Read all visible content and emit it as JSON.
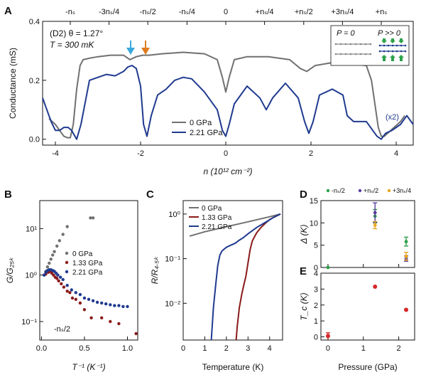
{
  "colors": {
    "gray": "#707070",
    "blue": "#1f3a8f",
    "red": "#8b1a1a",
    "green": "#2ca24a",
    "purple": "#5b3fa0",
    "orange": "#e9a821",
    "cyan": "#3aa8dc",
    "arrow_orange": "#e07b1e"
  },
  "chart_data": [
    {
      "panel": "A",
      "type": "line",
      "title_line1": "(D2)  θ = 1.27°",
      "title_line2": "T = 300 mK",
      "xlabel": "n (10¹² cm⁻²)",
      "ylabel": "Conductance (mS)",
      "xlim": [
        -4.3,
        4.4
      ],
      "ylim": [
        -0.02,
        0.4
      ],
      "xticks": [
        "-4",
        "-2",
        "0",
        "2",
        "4"
      ],
      "yticks": [
        "0.0",
        "0.2",
        "0.4"
      ],
      "top_ticks": [
        {
          "x": -3.65,
          "label": "-nₛ"
        },
        {
          "x": -2.74,
          "label": "-3nₛ/4"
        },
        {
          "x": -1.83,
          "label": "-nₛ/2"
        },
        {
          "x": -0.91,
          "label": "-nₛ/4"
        },
        {
          "x": 0,
          "label": "0"
        },
        {
          "x": 0.91,
          "label": "+nₛ/4"
        },
        {
          "x": 1.83,
          "label": "+nₛ/2"
        },
        {
          "x": 2.74,
          "label": "+3nₛ/4"
        },
        {
          "x": 3.65,
          "label": "+nₛ"
        }
      ],
      "inset": {
        "left": "P = 0",
        "right": "P >> 0"
      },
      "annotation": "(x2)",
      "series": [
        {
          "name": "0 GPa",
          "color": "gray",
          "x": [
            -4.15,
            -4.0,
            -3.9,
            -3.8,
            -3.72,
            -3.65,
            -3.58,
            -3.5,
            -3.42,
            -3.35,
            -3.2,
            -3.0,
            -2.7,
            -2.4,
            -2.25,
            -2.1,
            -1.95,
            -1.8,
            -1.5,
            -1.0,
            -0.5,
            -0.2,
            -0.08,
            0,
            0.08,
            0.2,
            0.5,
            1.0,
            1.5,
            1.75,
            1.9,
            2.1,
            2.5,
            3.0,
            3.3,
            3.42,
            3.5,
            3.58,
            3.65,
            3.72,
            3.8,
            3.95,
            4.1,
            4.2
          ],
          "y": [
            0.07,
            0.05,
            0.03,
            0.01,
            0.005,
            0.005,
            0.05,
            0.17,
            0.25,
            0.27,
            0.275,
            0.28,
            0.285,
            0.285,
            0.27,
            0.28,
            0.285,
            0.285,
            0.29,
            0.295,
            0.29,
            0.27,
            0.21,
            0.16,
            0.21,
            0.27,
            0.28,
            0.28,
            0.27,
            0.24,
            0.23,
            0.25,
            0.26,
            0.255,
            0.25,
            0.2,
            0.12,
            0.04,
            0.01,
            0.01,
            0.02,
            0.04,
            0.06,
            0.08
          ]
        },
        {
          "name": "2.21 GPa",
          "color": "blue",
          "x": [
            -4.3,
            -4.2,
            -4.1,
            -4.0,
            -3.9,
            -3.8,
            -3.7,
            -3.62,
            -3.5,
            -3.4,
            -3.2,
            -3.0,
            -2.8,
            -2.6,
            -2.4,
            -2.3,
            -2.2,
            -2.1,
            -2.0,
            -1.93,
            -1.85,
            -1.75,
            -1.6,
            -1.4,
            -1.2,
            -1.0,
            -0.8,
            -0.5,
            -0.2,
            -0.08,
            0,
            0.08,
            0.2,
            0.5,
            0.8,
            0.95,
            1.1,
            1.4,
            1.7,
            1.85,
            1.95,
            2.05,
            2.2,
            2.5,
            2.75,
            2.85,
            3.0,
            3.3,
            3.45,
            3.55,
            3.65,
            3.75,
            3.9,
            4.1,
            4.25,
            4.4
          ],
          "y": [
            0.14,
            0.1,
            0.06,
            0.03,
            0.03,
            0.04,
            0.04,
            0.03,
            0.0,
            0.05,
            0.2,
            0.21,
            0.22,
            0.215,
            0.23,
            0.245,
            0.25,
            0.24,
            0.18,
            0.05,
            0.01,
            0.08,
            0.15,
            0.17,
            0.2,
            0.21,
            0.205,
            0.16,
            0.1,
            0.03,
            0.01,
            0.05,
            0.12,
            0.18,
            0.14,
            0.1,
            0.14,
            0.19,
            0.14,
            0.06,
            0.02,
            0.06,
            0.15,
            0.17,
            0.15,
            0.08,
            0.06,
            0.06,
            0.03,
            0.01,
            0.0,
            0.02,
            0.03,
            0.05,
            0.08,
            0.05
          ]
        }
      ]
    },
    {
      "panel": "B",
      "type": "scatter",
      "yscale": "log",
      "xlabel": "T⁻¹ (K⁻¹)",
      "ylabel": "G/G₂₅ₖ",
      "xlim": [
        -0.02,
        1.12
      ],
      "ylim": [
        0.04,
        40
      ],
      "xticks": [
        "0.0",
        "0.5",
        "1.0"
      ],
      "yticks": [
        "10⁻¹",
        "10⁰",
        "10¹"
      ],
      "annotation": "-nₛ/2",
      "series": [
        {
          "name": "0 GPa",
          "color": "gray",
          "x": [
            0.03,
            0.05,
            0.07,
            0.09,
            0.11,
            0.13,
            0.15,
            0.18,
            0.21,
            0.25,
            0.3,
            0.57,
            0.6
          ],
          "y": [
            1.0,
            1.2,
            1.5,
            1.8,
            2.2,
            2.7,
            3.2,
            4.2,
            5.5,
            7.5,
            11,
            17,
            17
          ]
        },
        {
          "name": "1.33 GPa",
          "color": "red",
          "x": [
            0.05,
            0.08,
            0.1,
            0.12,
            0.14,
            0.16,
            0.18,
            0.2,
            0.23,
            0.26,
            0.3,
            0.33,
            0.36,
            0.4,
            0.45,
            0.5,
            0.58,
            0.7,
            0.8,
            0.9,
            1.1
          ],
          "y": [
            1.05,
            1.15,
            1.2,
            1.1,
            1.0,
            0.9,
            0.85,
            0.75,
            0.65,
            0.55,
            0.45,
            0.42,
            0.32,
            0.3,
            0.25,
            0.18,
            0.12,
            0.12,
            0.1,
            0.09,
            0.055
          ]
        },
        {
          "name": "2.21 GPa",
          "color": "blue",
          "x": [
            0.03,
            0.05,
            0.07,
            0.09,
            0.11,
            0.13,
            0.15,
            0.17,
            0.19,
            0.22,
            0.25,
            0.3,
            0.35,
            0.4,
            0.45,
            0.5,
            0.55,
            0.6,
            0.65,
            0.7,
            0.75,
            0.8,
            0.85,
            0.9,
            0.95,
            1.0
          ],
          "y": [
            1.0,
            1.15,
            1.25,
            1.3,
            1.3,
            1.25,
            1.2,
            1.1,
            1.0,
            0.9,
            0.8,
            0.6,
            0.48,
            0.42,
            0.38,
            0.32,
            0.3,
            0.28,
            0.26,
            0.25,
            0.24,
            0.23,
            0.22,
            0.22,
            0.21,
            0.21
          ]
        }
      ]
    },
    {
      "panel": "C",
      "type": "line",
      "yscale": "log",
      "xlabel": "Temperature (K)",
      "ylabel": "R/R₄.₅ₖ",
      "xlim": [
        0,
        4.6
      ],
      "ylim": [
        0.0015,
        2
      ],
      "xticks": [
        "0",
        "1",
        "2",
        "3",
        "4"
      ],
      "yticks": [
        "10⁻²",
        "10⁻¹",
        "10⁰"
      ],
      "series": [
        {
          "name": "0 GPa",
          "color": "gray",
          "x": [
            0.3,
            1,
            2,
            3,
            4,
            4.5
          ],
          "y": [
            0.32,
            0.4,
            0.52,
            0.67,
            0.87,
            1.0
          ]
        },
        {
          "name": "1.33 GPa",
          "color": "red",
          "x": [
            2.45,
            2.5,
            2.6,
            2.7,
            2.8,
            2.9,
            3.0,
            3.1,
            3.2,
            3.4,
            3.6,
            3.8,
            4.0,
            4.2,
            4.5
          ],
          "y": [
            0.0015,
            0.003,
            0.008,
            0.015,
            0.025,
            0.04,
            0.08,
            0.16,
            0.25,
            0.38,
            0.5,
            0.62,
            0.75,
            0.85,
            1.0
          ]
        },
        {
          "name": "2.21 GPa",
          "color": "blue",
          "x": [
            1.3,
            1.4,
            1.5,
            1.6,
            1.7,
            1.8,
            2.0,
            2.2,
            2.4,
            2.6,
            2.8,
            3.0,
            3.4,
            3.8,
            4.2,
            4.5
          ],
          "y": [
            0.0015,
            0.008,
            0.025,
            0.07,
            0.12,
            0.15,
            0.18,
            0.2,
            0.22,
            0.26,
            0.3,
            0.36,
            0.5,
            0.65,
            0.85,
            1.0
          ]
        }
      ]
    },
    {
      "panel": "D",
      "type": "scatter",
      "ylabel": "Δ (K)",
      "xlim": [
        -0.2,
        2.45
      ],
      "ylim": [
        0,
        15
      ],
      "yticks": [
        "0",
        "5",
        "10",
        "15"
      ],
      "legend": [
        "-nₛ/2",
        "+nₛ/2",
        "+3nₛ/4"
      ],
      "points": [
        {
          "series": "-nₛ/2",
          "color": "green",
          "x": 0,
          "y": 0,
          "err": 0.3
        },
        {
          "series": "-nₛ/2",
          "color": "green",
          "x": 1.33,
          "y": 11.5,
          "err": 1.5
        },
        {
          "series": "-nₛ/2",
          "color": "green",
          "x": 2.21,
          "y": 5.8,
          "err": 1.0
        },
        {
          "series": "+nₛ/2",
          "color": "purple",
          "x": 1.33,
          "y": 12.3,
          "err": 2.2
        },
        {
          "series": "+nₛ/2",
          "color": "purple",
          "x": 2.21,
          "y": 2.0,
          "err": 0.6
        },
        {
          "series": "+3nₛ/4",
          "color": "orange",
          "x": 1.33,
          "y": 9.5,
          "err": 0.8
        },
        {
          "series": "+3nₛ/4",
          "color": "orange",
          "x": 2.21,
          "y": 2.5,
          "err": 0.9
        }
      ]
    },
    {
      "panel": "E",
      "type": "scatter",
      "xlabel": "Pressure (GPa)",
      "ylabel": "T_c (K)",
      "xlim": [
        -0.2,
        2.45
      ],
      "ylim": [
        -0.2,
        4
      ],
      "xticks": [
        "0",
        "1",
        "2"
      ],
      "yticks": [
        "0",
        "1",
        "2",
        "3",
        "4"
      ],
      "points": [
        {
          "x": 0,
          "y": 0.05,
          "err": 0.2
        },
        {
          "x": 1.33,
          "y": 3.15,
          "err": 0
        },
        {
          "x": 2.21,
          "y": 1.7,
          "err": 0
        }
      ]
    }
  ]
}
